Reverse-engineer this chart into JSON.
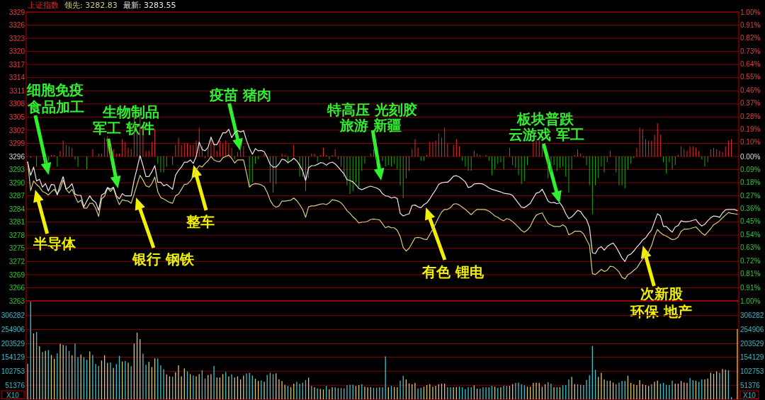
{
  "chart_data": [
    {
      "type": "line",
      "title": "上证指数",
      "legend": "top left",
      "grid": "y",
      "tick_labels": "y",
      "categories": [
        null,
        null,
        null,
        null,
        null,
        null,
        null,
        null,
        null,
        null,
        null,
        null,
        null,
        null,
        null,
        null,
        null,
        null,
        null,
        null,
        null,
        null,
        null,
        null,
        null,
        null,
        null,
        null,
        null,
        null,
        null,
        null,
        null,
        null,
        null,
        null,
        null,
        null,
        null,
        null,
        null,
        null,
        null,
        null,
        null,
        null,
        null,
        null,
        null,
        null,
        null,
        null,
        null,
        null,
        null,
        null,
        null,
        null,
        null,
        null,
        null,
        null,
        null,
        null,
        null,
        null,
        null,
        null,
        null,
        null,
        null,
        null,
        null,
        null,
        null,
        null,
        null,
        null,
        null,
        null,
        null,
        null,
        null,
        null,
        null,
        null,
        null,
        null,
        null,
        null,
        null,
        null,
        null,
        null,
        null,
        null,
        null,
        null,
        null,
        null,
        null,
        null,
        null,
        null,
        null,
        null,
        null,
        null,
        null,
        null,
        null,
        null,
        null,
        null,
        null,
        null,
        null,
        null,
        null,
        null,
        null,
        null,
        null,
        null,
        null,
        null,
        null,
        null,
        null,
        null,
        null,
        null,
        null,
        null,
        null,
        null,
        null,
        null,
        null,
        null,
        null,
        null,
        null,
        null,
        null,
        null,
        null,
        null,
        null,
        null,
        null,
        null,
        null,
        null,
        null,
        null,
        null,
        null,
        null,
        null,
        null,
        null,
        null,
        null,
        null,
        null,
        null,
        null,
        null,
        null,
        null,
        null,
        null,
        null,
        null,
        null,
        null,
        null,
        null,
        null,
        null,
        null,
        null,
        null,
        null,
        null,
        null,
        null,
        null,
        null,
        null,
        null,
        null,
        null,
        null,
        null,
        null,
        null,
        null,
        null,
        null,
        null,
        null,
        null,
        null,
        null,
        null,
        null,
        null,
        null,
        null,
        null,
        null,
        null,
        null,
        null,
        null,
        null,
        null,
        null,
        null,
        null,
        null,
        null,
        null,
        null,
        null,
        null,
        null,
        null,
        null,
        null,
        null,
        null,
        null,
        null,
        null,
        null,
        null,
        null,
        null
      ],
      "ylim": [
        3263,
        3329
      ],
      "yticks": [
        3263,
        3266,
        3269,
        3272,
        3275,
        3278,
        3281,
        3284,
        3287,
        3290,
        3293,
        3296,
        3299,
        3302,
        3305,
        3308,
        3311,
        3314,
        3317,
        3320,
        3323,
        3326,
        3329
      ],
      "y2lim": [
        -1,
        1
      ],
      "y2ticks": [
        {
          "value": -1,
          "label": "1.00%"
        },
        {
          "value": -0.91,
          "label": "0.91%"
        },
        {
          "value": -0.81,
          "label": "0.81%"
        },
        {
          "value": -0.72,
          "label": "0.72%"
        },
        {
          "value": -0.63,
          "label": "0.63%"
        },
        {
          "value": -0.54,
          "label": "0.54%"
        },
        {
          "value": -0.45,
          "label": "0.45%"
        },
        {
          "value": -0.36,
          "label": "0.36%"
        },
        {
          "value": -0.27,
          "label": "0.27%"
        },
        {
          "value": -0.18,
          "label": "0.18%"
        },
        {
          "value": -0.09,
          "label": "0.09%"
        },
        {
          "value": 0,
          "label": "0.00%"
        },
        {
          "value": 0.1,
          "label": "0.10%"
        },
        {
          "value": 0.19,
          "label": "0.19%"
        },
        {
          "value": 0.28,
          "label": "0.28%"
        },
        {
          "value": 0.37,
          "label": "0.37%"
        },
        {
          "value": 0.46,
          "label": "0.46%"
        },
        {
          "value": 0.55,
          "label": "0.55%"
        },
        {
          "value": 0.64,
          "label": "0.64%"
        },
        {
          "value": 0.73,
          "label": "0.73%"
        },
        {
          "value": 0.82,
          "label": "0.82%"
        },
        {
          "value": 0.91,
          "label": "0.91%"
        },
        {
          "value": 1,
          "label": "1.00%"
        }
      ],
      "annotations": [
        "细胞免疫",
        "食品加工",
        "生物制品",
        "军工 软件",
        "疫苗 猪肉",
        "特高压 光刻胶",
        "旅游 新疆",
        "板块普跌",
        "云游戏 军工",
        "半导体",
        "银行 钢铁",
        "整车",
        "有色 锂电",
        "次新股",
        "环保 地产"
      ],
      "series": [
        {
          "type": "bar",
          "axis": "y2",
          "values": [
            null,
            -0.01,
            null,
            -0.07,
            null,
            null,
            -0.05,
            -0.03,
            0.01,
            0.01,
            -0.07,
            0.04,
            0.11,
            0.08,
            0.07,
            0.06,
            -0.02,
            -0.07,
            null,
            null,
            -0.09,
            null,
            0.05,
            null,
            0.02,
            0.02,
            0.13,
            0.14,
            0.07,
            0.05,
            0.02,
            0.02,
            0.12,
            0.1,
            0.06,
            0.05,
            0.28,
            0.16,
            0.29,
            0.2,
            0.04,
            0.04,
            0.1,
            0.19,
            -0.05,
            -0.11,
            -0.11,
            -0.07,
            null,
            -0.06,
            0.08,
            0.13,
            0.08,
            0.09,
            0.09,
            0.08,
            0.08,
            0.11,
            0.2,
            0.07,
            -0.01,
            0.06,
            0.14,
            0.09,
            0.04,
            0.11,
            0.09,
            0.11,
            0.09,
            0.06,
            -0.02,
            0.03,
            0.08,
            0.07,
            null,
            -0.21,
            -0.18,
            -0.05,
            -0.02,
            null,
            0.02,
            null,
            -0.18,
            -0.25,
            -0.19,
            null,
            0.02,
            0.01,
            -0.05,
            null,
            0.08,
            null,
            -0.14,
            -0.14,
            -0.24,
            -0.15,
            0.02,
            0.02,
            -0.04,
            0.01,
            0.06,
            0.01,
            -0.02,
            0.01,
            0.05,
            -0.02,
            -0.07,
            -0.14,
            -0.2,
            -0.26,
            -0.24,
            -0.18,
            -0.21,
            -0.1,
            -0.05,
            null,
            0.02,
            0.05,
            -0.05,
            null,
            -0.03,
            -0.07,
            -0.06,
            -0.07,
            -0.05,
            -0.09,
            -0.2,
            -0.29,
            -0.15,
            -0.1,
            0.05,
            0.12,
            0.06,
            -0.03,
            -0.03,
            0.01,
            0.1,
            0.1,
            0.11,
            0.16,
            0.13,
            0.2,
            0.09,
            null,
            0.08,
            0.12,
            0.07,
            -0.03,
            -0.07,
            -0.1,
            -0.1,
            0.04,
            0.02,
            0.01,
            null,
            0.01,
            -0.03,
            -0.13,
            -0.09,
            -0.05,
            -0.04,
            -0.09,
            null,
            0.06,
            -0.06,
            -0.08,
            -0.13,
            -0.19,
            -0.17,
            -0.06,
            null,
            0.1,
            0.11,
            0.11,
            0.08,
            null,
            -0.15,
            -0.11,
            -0.06,
            -0.1,
            -0.08,
            -0.07,
            -0.14,
            -0.25,
            -0.09,
            0.01,
            0.05,
            0.02,
            -0.01,
            -0.06,
            -0.2,
            -0.4,
            -0.2,
            -0.15,
            -0.07,
            -0.11,
            -0.04,
            0.04,
            null,
            -0.11,
            -0.2,
            -0.2,
            -0.22,
            -0.09,
            -0.05,
            -0.01,
            0.06,
            0.2,
            0.19,
            0.12,
            0.11,
            0.11,
            0.15,
            0.23,
            0.15,
            -0.04,
            -0.12,
            -0.04,
            -0.09,
            -0.06,
            0.01,
            0.07,
            0.05,
            0.04,
            0.07,
            0.07,
            0.06,
            0.04,
            -0.02,
            -0.07,
            -0.04,
            0.05,
            0.06,
            0.05,
            0.04,
            0.03,
            0.07,
            0.11,
            0.12,
            null,
            null
          ],
          "colors": [
            null,
            "#18a818",
            null,
            "#18a818",
            null,
            null,
            "#18a818",
            "#18a818",
            "#e42a2a",
            "#e42a2a",
            "#18a818",
            "#e42a2a",
            "#e42a2a",
            "#e42a2a",
            "#e42a2a",
            "#e42a2a",
            "#18a818",
            "#18a818",
            null,
            null,
            "#18a818",
            null,
            "#e42a2a",
            null,
            "#e42a2a",
            "#e42a2a",
            "#e42a2a",
            "#e42a2a",
            "#e42a2a",
            "#e42a2a",
            "#e42a2a",
            "#e42a2a",
            "#e42a2a",
            "#e42a2a",
            "#e42a2a",
            "#e42a2a",
            "#e42a2a",
            "#e42a2a",
            "#e42a2a",
            "#e42a2a",
            "#e42a2a",
            "#e42a2a",
            "#e42a2a",
            "#e42a2a",
            "#18a818",
            "#18a818",
            "#18a818",
            "#18a818",
            null,
            "#18a818",
            "#e42a2a",
            "#e42a2a",
            "#e42a2a",
            "#e42a2a",
            "#e42a2a",
            "#e42a2a",
            "#e42a2a",
            "#e42a2a",
            "#e42a2a",
            "#e42a2a",
            "#18a818",
            "#e42a2a",
            "#e42a2a",
            "#e42a2a",
            "#e42a2a",
            "#e42a2a",
            "#e42a2a",
            "#e42a2a",
            "#e42a2a",
            "#e42a2a",
            "#18a818",
            "#e42a2a",
            "#e42a2a",
            "#e42a2a",
            null,
            "#18a818",
            "#18a818",
            "#18a818",
            "#18a818",
            null,
            "#e42a2a",
            null,
            "#18a818",
            "#18a818",
            "#18a818",
            null,
            "#e42a2a",
            "#e42a2a",
            "#18a818",
            null,
            "#e42a2a",
            null,
            "#18a818",
            "#18a818",
            "#18a818",
            "#18a818",
            "#e42a2a",
            "#e42a2a",
            "#18a818",
            "#e42a2a",
            "#e42a2a",
            "#e42a2a",
            "#18a818",
            "#e42a2a",
            "#e42a2a",
            "#18a818",
            "#18a818",
            "#18a818",
            "#18a818",
            "#18a818",
            "#18a818",
            "#18a818",
            "#18a818",
            "#18a818",
            "#18a818",
            null,
            "#e42a2a",
            "#e42a2a",
            "#18a818",
            null,
            "#18a818",
            "#18a818",
            "#18a818",
            "#18a818",
            "#18a818",
            "#18a818",
            "#18a818",
            "#18a818",
            "#18a818",
            "#18a818",
            "#e42a2a",
            "#e42a2a",
            "#e42a2a",
            "#18a818",
            "#18a818",
            "#e42a2a",
            "#e42a2a",
            "#e42a2a",
            "#e42a2a",
            "#e42a2a",
            "#e42a2a",
            "#e42a2a",
            "#e42a2a",
            null,
            "#e42a2a",
            "#e42a2a",
            "#e42a2a",
            "#18a818",
            "#18a818",
            "#18a818",
            "#18a818",
            "#e42a2a",
            "#e42a2a",
            "#e42a2a",
            null,
            "#e42a2a",
            "#18a818",
            "#18a818",
            "#18a818",
            "#18a818",
            "#18a818",
            "#18a818",
            null,
            "#e42a2a",
            "#18a818",
            "#18a818",
            "#18a818",
            "#18a818",
            "#18a818",
            "#18a818",
            null,
            "#e42a2a",
            "#e42a2a",
            "#e42a2a",
            "#e42a2a",
            null,
            "#18a818",
            "#18a818",
            "#18a818",
            "#18a818",
            "#18a818",
            "#18a818",
            "#18a818",
            "#18a818",
            "#18a818",
            "#e42a2a",
            "#e42a2a",
            "#e42a2a",
            "#18a818",
            "#18a818",
            "#18a818",
            "#18a818",
            "#18a818",
            "#18a818",
            "#18a818",
            "#18a818",
            "#18a818",
            "#e42a2a",
            null,
            "#18a818",
            "#18a818",
            "#18a818",
            "#18a818",
            "#18a818",
            "#18a818",
            "#18a818",
            "#e42a2a",
            "#e42a2a",
            "#e42a2a",
            "#e42a2a",
            "#e42a2a",
            "#e42a2a",
            "#e42a2a",
            "#e42a2a",
            "#e42a2a",
            "#18a818",
            "#18a818",
            "#18a818",
            "#18a818",
            "#18a818",
            "#e42a2a",
            "#e42a2a",
            "#e42a2a",
            "#e42a2a",
            "#e42a2a",
            "#e42a2a",
            "#e42a2a",
            "#e42a2a",
            "#18a818",
            "#18a818",
            "#18a818",
            "#e42a2a",
            "#e42a2a",
            "#e42a2a",
            "#e42a2a",
            "#e42a2a",
            "#e42a2a",
            "#e42a2a",
            "#e42a2a",
            null,
            null
          ]
        },
        {
          "name": "领先: 3282.83",
          "color": "#d4cc80",
          "values": [
            3294.8,
            3288.2,
            3290.4,
            3289.6,
            3289.0,
            3288.0,
            3287.7,
            3287.2,
            3287.9,
            3288.5,
            3287.4,
            3288.5,
            3290.6,
            3288.5,
            3287.7,
            3288.5,
            3286.9,
            3285.5,
            3286.0,
            3284.2,
            3284.2,
            3285.3,
            3285.3,
            3284.2,
            3282.3,
            3286.3,
            3286.9,
            3288.8,
            3288.0,
            3288.8,
            3286.6,
            3285.0,
            3286.1,
            3285.9,
            3285.8,
            3285.3,
            3287.4,
            3289.6,
            3291.7,
            3290.6,
            3289.3,
            3289.0,
            3289.8,
            3291.3,
            3288.0,
            3286.6,
            3286.3,
            3285.9,
            3285.5,
            3285.3,
            3287.0,
            3287.4,
            3288.5,
            3289.6,
            3289.7,
            3290.4,
            3291.4,
            3292.9,
            3293.9,
            3293.6,
            3294.4,
            3295.0,
            3296.0,
            3295.2,
            3294.9,
            3294.8,
            3295.7,
            3296.0,
            3296.3,
            3295.6,
            3294.5,
            3295.2,
            3295.2,
            3295.2,
            3292.2,
            3289.0,
            3289.6,
            3289.8,
            3289.7,
            3289.5,
            3289.1,
            3287.8,
            3286.0,
            3284.9,
            3284.4,
            3284.7,
            3285.8,
            3285.8,
            3285.9,
            3286.0,
            3286.5,
            3285.9,
            3285.0,
            3283.9,
            3282.1,
            3284.5,
            3284.7,
            3284.7,
            3284.9,
            3285.1,
            3285.2,
            3285.0,
            3285.4,
            3286.1,
            3286.0,
            3285.8,
            3285.4,
            3284.6,
            3283.6,
            3283.0,
            3282.2,
            3281.6,
            3280.8,
            3281.0,
            3281.0,
            3281.2,
            3281.6,
            3281.7,
            3281.6,
            3281.5,
            3280.6,
            3279.7,
            3280.0,
            3279.7,
            3279.7,
            3279.1,
            3277.7,
            3275.2,
            3274.4,
            3275.0,
            3276.2,
            3277.4,
            3277.5,
            3277.4,
            3277.1,
            3277.0,
            3278.2,
            3279.4,
            3280.7,
            3282.1,
            3283.3,
            3283.9,
            3283.9,
            3284.3,
            3285.1,
            3285.2,
            3284.9,
            3284.4,
            3283.9,
            3283.3,
            3282.7,
            3283.4,
            3283.9,
            3283.9,
            3283.9,
            3283.8,
            3283.5,
            3283.0,
            3282.4,
            3282.1,
            3281.6,
            3281.3,
            3281.8,
            3281.6,
            3281.1,
            3280.5,
            3279.8,
            3279.1,
            3278.7,
            3279.2,
            3280.0,
            3281.5,
            3282.6,
            3282.9,
            3283.1,
            3281.8,
            3280.7,
            3280.3,
            3280.0,
            3280.0,
            3280.0,
            3280.4,
            3279.9,
            3278.1,
            3278.4,
            3278.9,
            3278.9,
            3278.9,
            3278.3,
            3277.0,
            3275.7,
            3269.2,
            3269.0,
            3269.6,
            3270.2,
            3269.7,
            3270.0,
            3270.9,
            3270.8,
            3270.3,
            3269.6,
            3268.4,
            3268.0,
            3269.0,
            3269.4,
            3270.0,
            3270.5,
            3271.6,
            3272.6,
            3273.4,
            3274.2,
            3275.6,
            3277.8,
            3279.3,
            3278.6,
            3278.1,
            3277.8,
            3277.4,
            3277.0,
            3277.1,
            3277.6,
            3278.9,
            3279.4,
            3279.4,
            3279.5,
            3279.7,
            3279.9,
            3279.2,
            3278.5,
            3278.0,
            3278.7,
            3279.5,
            3280.4,
            3280.8,
            3281.3,
            3282.0,
            3282.6,
            3283.2,
            3283.0,
            3282.9,
            3282.8
          ]
        },
        {
          "name": "最新: 3283.55",
          "color": "#e8e8e8",
          "values": [
            3294.7,
            3291.7,
            3293.6,
            3290.4,
            3290.8,
            3289.0,
            3289.8,
            3288.1,
            3289.6,
            3289.5,
            3287.2,
            3289.6,
            3291.4,
            3288.5,
            3289.0,
            3289.8,
            3287.4,
            3287.1,
            3287.1,
            3284.5,
            3285.8,
            3287.0,
            3286.0,
            3285.5,
            3283.7,
            3287.2,
            3287.6,
            3288.9,
            3288.5,
            3289.0,
            3287.0,
            3286.3,
            3287.5,
            3287.0,
            3287.0,
            3287.0,
            3290.6,
            3293.3,
            3296.2,
            3293.9,
            3291.4,
            3291.4,
            3292.5,
            3293.9,
            3290.1,
            3290.1,
            3289.3,
            3289.6,
            3289.1,
            3288.5,
            3291.7,
            3292.8,
            3293.6,
            3294.7,
            3294.7,
            3295.2,
            3294.4,
            3296.0,
            3299.3,
            3297.6,
            3297.3,
            3298.1,
            3300.4,
            3298.7,
            3298.7,
            3300.0,
            3301.4,
            3301.4,
            3302.2,
            3300.3,
            3301.4,
            3301.9,
            3301.6,
            3301.9,
            3299.7,
            3297.9,
            3296.5,
            3297.8,
            3297.3,
            3297.4,
            3297.1,
            3295.8,
            3294.2,
            3293.6,
            3293.6,
            3294.3,
            3295.4,
            3295.2,
            3294.6,
            3295.0,
            3295.6,
            3295.0,
            3294.0,
            3292.7,
            3290.5,
            3293.4,
            3293.9,
            3293.9,
            3294.2,
            3294.6,
            3294.5,
            3294.0,
            3294.5,
            3294.7,
            3294.3,
            3293.6,
            3292.8,
            3292.0,
            3290.7,
            3290.5,
            3290.2,
            3289.5,
            3288.7,
            3288.4,
            3288.7,
            3289.0,
            3289.2,
            3289.0,
            3288.8,
            3288.4,
            3287.5,
            3287.0,
            3286.9,
            3286.5,
            3286.7,
            3286.4,
            3283.0,
            3282.4,
            3282.7,
            3282.9,
            3284.8,
            3284.9,
            3284.5,
            3284.3,
            3285.0,
            3285.4,
            3286.3,
            3287.4,
            3288.4,
            3289.6,
            3290.0,
            3290.1,
            3290.1,
            3290.7,
            3291.5,
            3291.6,
            3291.3,
            3290.8,
            3290.2,
            3288.9,
            3289.1,
            3289.7,
            3289.8,
            3289.8,
            3289.7,
            3289.3,
            3288.8,
            3288.5,
            3288.3,
            3288.1,
            3287.9,
            3287.6,
            3287.5,
            3287.4,
            3287.1,
            3286.2,
            3285.3,
            3284.4,
            3284.3,
            3284.8,
            3285.3,
            3286.5,
            3287.6,
            3287.8,
            3288.5,
            3287.2,
            3285.8,
            3285.4,
            3285.5,
            3285.2,
            3285.4,
            3284.4,
            3282.9,
            3281.8,
            3282.2,
            3282.9,
            3283.7,
            3283.4,
            3282.4,
            3281.6,
            3279.8,
            3274.0,
            3273.8,
            3275.0,
            3275.4,
            3274.6,
            3275.4,
            3275.9,
            3276.2,
            3275.3,
            3274.1,
            3272.8,
            3272.0,
            3273.4,
            3273.7,
            3274.4,
            3275.3,
            3276.0,
            3276.9,
            3277.4,
            3278.4,
            3279.2,
            3281.1,
            3282.9,
            3282.4,
            3280.0,
            3280.0,
            3279.3,
            3278.7,
            3279.9,
            3280.2,
            3281.3,
            3281.1,
            3281.1,
            3281.2,
            3281.4,
            3281.6,
            3280.7,
            3280.1,
            3280.5,
            3281.3,
            3282.0,
            3282.4,
            3282.3,
            3282.1,
            3283.1,
            3283.8,
            3283.9,
            3283.9,
            3283.9,
            3283.6
          ]
        }
      ]
    },
    {
      "type": "bar",
      "grid": "y",
      "tick_labels": "y",
      "ylabel": "X10",
      "y2label": "X10",
      "categories": [
        null,
        null,
        null,
        null,
        null,
        null,
        null,
        null,
        null,
        null,
        null,
        null,
        null,
        null,
        null,
        null,
        null,
        null,
        null,
        null,
        null,
        null,
        null,
        null,
        null,
        null,
        null,
        null,
        null,
        null,
        null,
        null,
        null,
        null,
        null,
        null,
        null,
        null,
        null,
        null,
        null,
        null,
        null,
        null,
        null,
        null,
        null,
        null,
        null,
        null,
        null,
        null,
        null,
        null,
        null,
        null,
        null,
        null,
        null,
        null,
        null,
        null,
        null,
        null,
        null,
        null,
        null,
        null,
        null,
        null,
        null,
        null,
        null,
        null,
        null,
        null,
        null,
        null,
        null,
        null,
        null,
        null,
        null,
        null,
        null,
        null,
        null,
        null,
        null,
        null,
        null,
        null,
        null,
        null,
        null,
        null,
        null,
        null,
        null,
        null,
        null,
        null,
        null,
        null,
        null,
        null,
        null,
        null,
        null,
        null,
        null,
        null,
        null,
        null,
        null,
        null,
        null,
        null,
        null,
        null,
        null,
        null,
        null,
        null,
        null,
        null,
        null,
        null,
        null,
        null,
        null,
        null,
        null,
        null,
        null,
        null,
        null,
        null,
        null,
        null,
        null,
        null,
        null,
        null,
        null,
        null,
        null,
        null,
        null,
        null,
        null,
        null,
        null,
        null,
        null,
        null,
        null,
        null,
        null,
        null,
        null,
        null,
        null,
        null,
        null,
        null,
        null,
        null,
        null,
        null,
        null,
        null,
        null,
        null,
        null,
        null,
        null,
        null,
        null,
        null,
        null,
        null,
        null,
        null,
        null,
        null,
        null,
        null,
        null,
        null,
        null,
        null,
        null,
        null,
        null,
        null,
        null,
        null,
        null,
        null,
        null,
        null,
        null,
        null,
        null,
        null,
        null,
        null,
        null,
        null,
        null,
        null,
        null,
        null,
        null,
        null,
        null,
        null,
        null,
        null,
        null,
        null,
        null,
        null,
        null,
        null,
        null,
        null,
        null,
        null,
        null,
        null,
        null,
        null,
        null,
        null,
        null,
        null,
        null,
        null,
        null
      ],
      "ylim": [
        0,
        360000
      ],
      "yticks": [
        51376,
        102753,
        154129,
        203529,
        254906,
        306282
      ],
      "y2lim": [
        0,
        360000
      ],
      "y2ticks": [
        51376,
        102753,
        154129,
        203529,
        254906,
        306282
      ],
      "values": [
        130000,
        357000,
        241000,
        246000,
        194000,
        173000,
        177000,
        180000,
        162000,
        148000,
        168000,
        203000,
        199000,
        196000,
        177000,
        161000,
        204000,
        154000,
        164000,
        154000,
        145000,
        175000,
        162000,
        129000,
        122000,
        142000,
        161000,
        133000,
        135000,
        115000,
        129000,
        159000,
        138000,
        140000,
        134000,
        121000,
        204000,
        244000,
        220000,
        167000,
        126000,
        137000,
        118000,
        150000,
        149000,
        124000,
        110000,
        91000,
        84000,
        83000,
        99000,
        124000,
        84000,
        113000,
        102000,
        92000,
        87000,
        84000,
        92000,
        106000,
        76000,
        89000,
        92000,
        122000,
        80000,
        80000,
        92000,
        100000,
        84000,
        91000,
        80000,
        84000,
        73000,
        87000,
        95000,
        97000,
        87000,
        75000,
        67000,
        69000,
        64000,
        89000,
        97000,
        92000,
        95000,
        73000,
        67000,
        53000,
        49000,
        45000,
        57000,
        64000,
        57000,
        61000,
        70000,
        79000,
        49000,
        44000,
        40000,
        38000,
        36000,
        49000,
        37000,
        44000,
        44000,
        41000,
        41000,
        40000,
        51000,
        53000,
        53000,
        49000,
        52000,
        55000,
        46000,
        44000,
        44000,
        42000,
        42000,
        44000,
        44000,
        157000,
        44000,
        49000,
        45000,
        44000,
        68000,
        86000,
        73000,
        58000,
        55000,
        60000,
        40000,
        42000,
        46000,
        52000,
        55000,
        46000,
        49000,
        55000,
        57000,
        57000,
        44000,
        44000,
        44000,
        45000,
        46000,
        44000,
        37000,
        44000,
        44000,
        51000,
        39000,
        39000,
        44000,
        44000,
        44000,
        49000,
        46000,
        42000,
        44000,
        49000,
        49000,
        49000,
        55000,
        60000,
        61000,
        55000,
        51000,
        46000,
        46000,
        60000,
        61000,
        60000,
        46000,
        55000,
        63000,
        57000,
        44000,
        44000,
        44000,
        51000,
        52000,
        73000,
        82000,
        55000,
        55000,
        53000,
        52000,
        71000,
        88000,
        195000,
        108000,
        82000,
        97000,
        73000,
        68000,
        68000,
        61000,
        55000,
        61000,
        67000,
        67000,
        86000,
        60000,
        55000,
        52000,
        70000,
        55000,
        52000,
        49000,
        55000,
        64000,
        68000,
        57000,
        60000,
        53000,
        52000,
        68000,
        57000,
        57000,
        67000,
        61000,
        60000,
        77000,
        70000,
        68000,
        64000,
        73000,
        73000,
        76000,
        97000,
        93000,
        102000,
        97000,
        111000,
        108000,
        106000,
        8000,
        null,
        257000
      ],
      "colors": [
        "#b4b4b4",
        "#40c4cc",
        "#d2c97c",
        "#40c4cc",
        "#d2c97c",
        "#40c4cc",
        "#d2c97c",
        "#40c4cc",
        "#d2c97c",
        "#d2c97c",
        "#40c4cc",
        "#d2c97c",
        "#d2c97c",
        "#40c4cc",
        "#40c4cc",
        "#d2c97c",
        "#40c4cc",
        "#40c4cc",
        "#d2c97c",
        "#40c4cc",
        "#40c4cc",
        "#d2c97c",
        "#40c4cc",
        "#40c4cc",
        "#40c4cc",
        "#d2c97c",
        "#d2c97c",
        "#d2c97c",
        "#40c4cc",
        "#d2c97c",
        "#40c4cc",
        "#40c4cc",
        "#d2c97c",
        "#40c4cc",
        "#d2c97c",
        "#40c4cc",
        "#d2c97c",
        "#d2c97c",
        "#d2c97c",
        "#40c4cc",
        "#40c4cc",
        "#d2c97c",
        "#d2c97c",
        "#d2c97c",
        "#40c4cc",
        "#40c4cc",
        "#40c4cc",
        "#d2c97c",
        "#d2c97c",
        "#40c4cc",
        "#d2c97c",
        "#d2c97c",
        "#d2c97c",
        "#d2c97c",
        "#40c4cc",
        "#d2c97c",
        "#40c4cc",
        "#d2c97c",
        "#d2c97c",
        "#40c4cc",
        "#40c4cc",
        "#d2c97c",
        "#d2c97c",
        "#40c4cc",
        "#d2c97c",
        "#d2c97c",
        "#d2c97c",
        "#40c4cc",
        "#d2c97c",
        "#40c4cc",
        "#d2c97c",
        "#d2c97c",
        "#d2c97c",
        "#d2c97c",
        "#40c4cc",
        "#40c4cc",
        "#40c4cc",
        "#d2c97c",
        "#d2c97c",
        "#40c4cc",
        "#d2c97c",
        "#40c4cc",
        "#40c4cc",
        "#40c4cc",
        "#d2c97c",
        "#d2c97c",
        "#d2c97c",
        "#d2c97c",
        "#40c4cc",
        "#d2c97c",
        "#d2c97c",
        "#40c4cc",
        "#40c4cc",
        "#40c4cc",
        "#40c4cc",
        "#d2c97c",
        "#40c4cc",
        "#d2c97c",
        "#40c4cc",
        "#d2c97c",
        "#d2c97c",
        "#40c4cc",
        "#d2c97c",
        "#d2c97c",
        "#40c4cc",
        "#40c4cc",
        "#40c4cc",
        "#40c4cc",
        "#40c4cc",
        "#40c4cc",
        "#40c4cc",
        "#d2c97c",
        "#d2c97c",
        "#40c4cc",
        "#d2c97c",
        "#d2c97c",
        "#d2c97c",
        "#40c4cc",
        "#40c4cc",
        "#40c4cc",
        "#40c4cc",
        "#40c4cc",
        "#d2c97c",
        "#40c4cc",
        "#d2c97c",
        "#d2c97c",
        "#40c4cc",
        "#40c4cc",
        "#d2c97c",
        "#d2c97c",
        "#d2c97c",
        "#d2c97c",
        "#40c4cc",
        "#40c4cc",
        "#d2c97c",
        "#d2c97c",
        "#d2c97c",
        "#d2c97c",
        "#d2c97c",
        "#d2c97c",
        "#d2c97c",
        "#d2c97c",
        "#40c4cc",
        "#40c4cc",
        "#d2c97c",
        "#d2c97c",
        "#40c4cc",
        "#40c4cc",
        "#40c4cc",
        "#40c4cc",
        "#40c4cc",
        "#d2c97c",
        "#d2c97c",
        "#40c4cc",
        "#40c4cc",
        "#40c4cc",
        "#40c4cc",
        "#40c4cc",
        "#d2c97c",
        "#40c4cc",
        "#d2c97c",
        "#40c4cc",
        "#40c4cc",
        "#d2c97c",
        "#d2c97c",
        "#40c4cc",
        "#40c4cc",
        "#40c4cc",
        "#40c4cc",
        "#d2c97c",
        "#d2c97c",
        "#d2c97c",
        "#d2c97c",
        "#d2c97c",
        "#d2c97c",
        "#d2c97c",
        "#40c4cc",
        "#40c4cc",
        "#d2c97c",
        "#40c4cc",
        "#d2c97c",
        "#40c4cc",
        "#40c4cc",
        "#40c4cc",
        "#d2c97c",
        "#d2c97c",
        "#40c4cc",
        "#40c4cc",
        "#40c4cc",
        "#40c4cc",
        "#40c4cc",
        "#40c4cc",
        "#40c4cc",
        "#d2c97c",
        "#d2c97c",
        "#d2c97c",
        "#40c4cc",
        "#d2c97c",
        "#d2c97c",
        "#40c4cc",
        "#40c4cc",
        "#40c4cc",
        "#40c4cc",
        "#d2c97c",
        "#d2c97c",
        "#d2c97c",
        "#d2c97c",
        "#d2c97c",
        "#d2c97c",
        "#d2c97c",
        "#d2c97c",
        "#40c4cc",
        "#d2c97c",
        "#d2c97c",
        "#40c4cc",
        "#40c4cc",
        "#40c4cc",
        "#40c4cc",
        "#40c4cc",
        "#d2c97c",
        "#d2c97c",
        "#d2c97c",
        "#d2c97c",
        "#d2c97c",
        "#40c4cc",
        "#40c4cc",
        "#d2c97c",
        "#40c4cc",
        "#40c4cc",
        "#d2c97c",
        "#d2c97c",
        "#d2c97c",
        "#d2c97c",
        "#d2c97c",
        "#40c4cc",
        "#d2c97c",
        "#d2c97c",
        "#40c4cc",
        "#40c4cc",
        null,
        "#d2c97c"
      ]
    }
  ]
}
